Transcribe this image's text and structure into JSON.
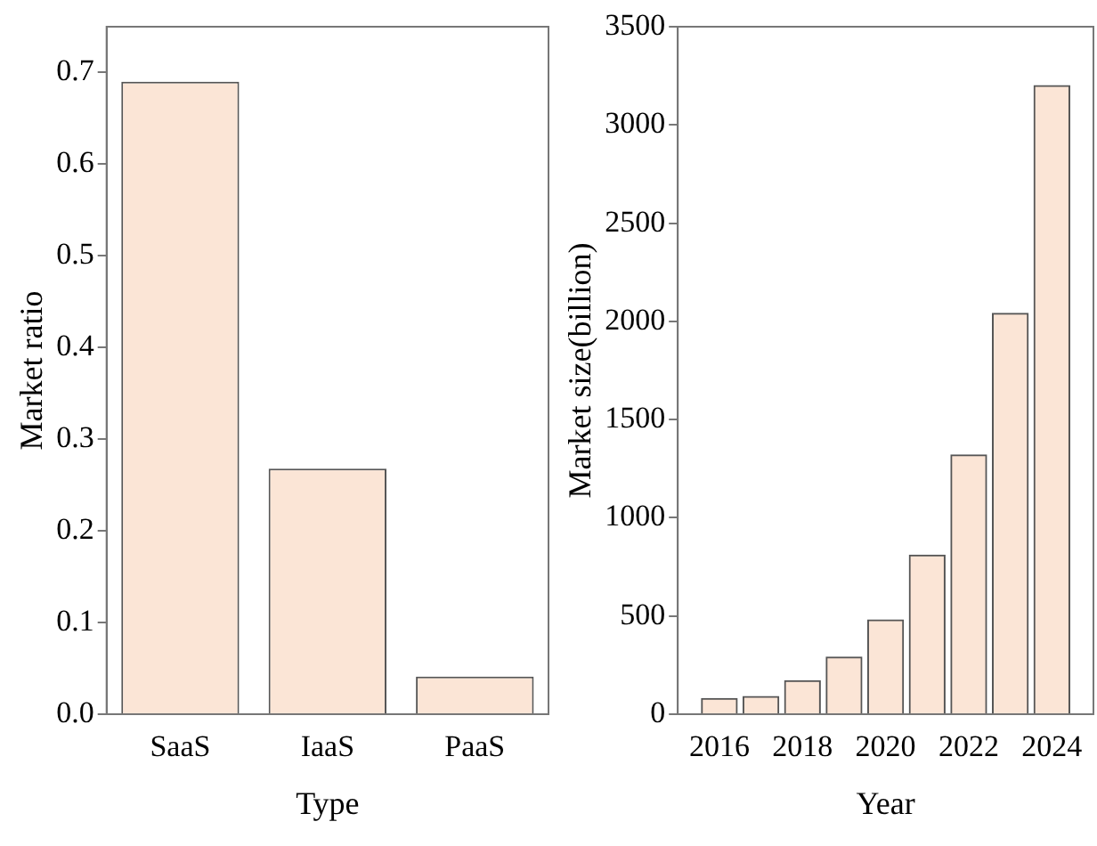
{
  "chart_data": [
    {
      "type": "bar",
      "xlabel": "Type",
      "ylabel": "Market ratio",
      "categories": [
        "SaaS",
        "IaaS",
        "PaaS"
      ],
      "values": [
        0.69,
        0.268,
        0.041
      ],
      "color": "#fbe5d6",
      "ylim": [
        0,
        0.75
      ],
      "yticks": [
        {
          "value": 0,
          "label": "0.0"
        },
        0.1,
        0.2,
        0.3,
        0.4,
        0.5,
        0.6,
        0.7
      ],
      "grid": false,
      "legend": false
    },
    {
      "type": "bar",
      "xlabel": "Year",
      "ylabel": "Market size(billion)",
      "x": [
        2016,
        2017,
        2018,
        2019,
        2020,
        2021,
        2022,
        2023,
        2024
      ],
      "values": [
        80,
        90,
        170,
        290,
        480,
        810,
        1320,
        2040,
        3200
      ],
      "color": "#fbe5d6",
      "xlim": [
        2015,
        2025
      ],
      "xticks": [
        2016,
        2018,
        2020,
        2022,
        2024
      ],
      "ylim": [
        0,
        3500
      ],
      "yticks": [
        0,
        500,
        1000,
        1500,
        2000,
        2500,
        3000,
        3500
      ],
      "grid": false,
      "legend": false
    }
  ]
}
